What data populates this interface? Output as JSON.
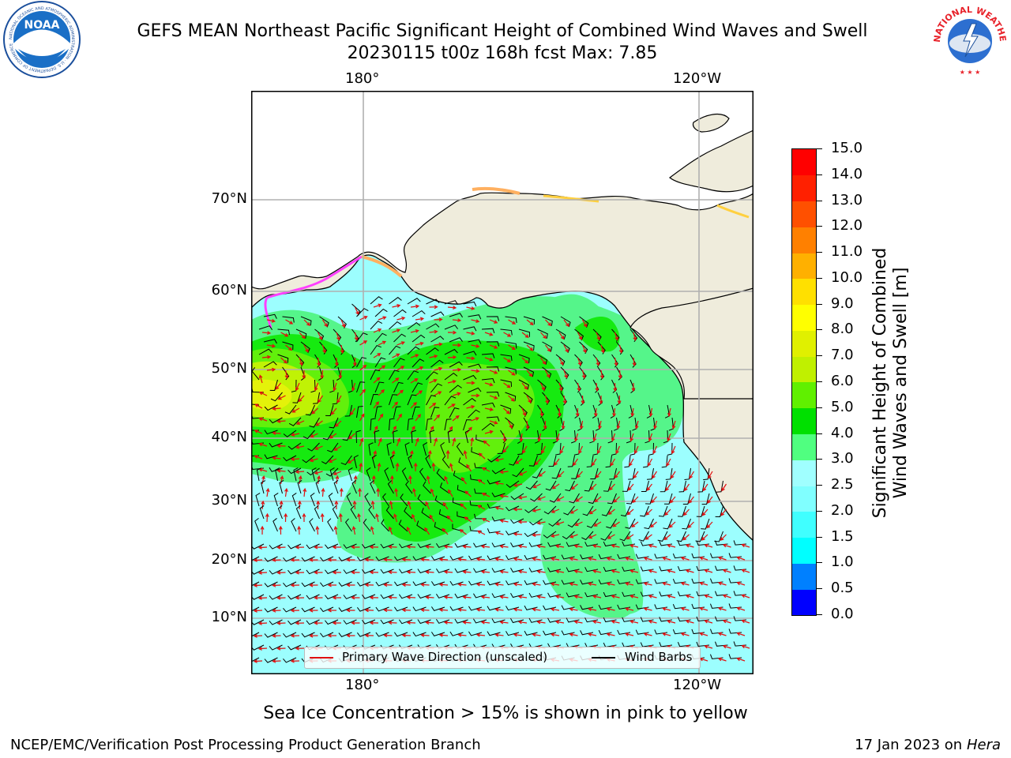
{
  "title_line1": "GEFS MEAN Northeast Pacific Significant Height of Combined Wind Waves and Swell",
  "title_line2": "20230115 t00z 168h fcst   Max: 7.85",
  "noaa_logo_text": "NOAA",
  "noaa_ring_text": "NATIONAL OCEANIC AND ATMOSPHERIC ADMINISTRATION · U.S. DEPARTMENT OF COMMERCE",
  "nws_ring_text": "NATIONAL WEATHER SERVICE",
  "axis": {
    "lon_top": [
      "180°",
      "120°W"
    ],
    "lon_bottom": [
      "180°",
      "120°W"
    ],
    "lat": [
      "70°N",
      "60°N",
      "50°N",
      "40°N",
      "30°N",
      "20°N",
      "10°N"
    ]
  },
  "legend": {
    "wave_dir": "Primary Wave Direction (unscaled)",
    "wind_barbs": "Wind Barbs"
  },
  "colorbar": {
    "label_line1": "Significant Height of Combined",
    "label_line2": "Wind Waves and Swell [m]",
    "ticks": [
      "0.0",
      "0.5",
      "1.0",
      "1.5",
      "2.0",
      "2.5",
      "3.0",
      "4.0",
      "5.0",
      "6.0",
      "7.0",
      "8.0",
      "9.0",
      "10.0",
      "11.0",
      "12.0",
      "13.0",
      "14.0",
      "15.0"
    ],
    "colors": [
      "#0000ff",
      "#0080ff",
      "#00ffff",
      "#40ffff",
      "#80ffff",
      "#a0ffff",
      "#50ff80",
      "#00e000",
      "#60f000",
      "#c0f000",
      "#e0f000",
      "#ffff00",
      "#ffe000",
      "#ffb000",
      "#ff8000",
      "#ff5000",
      "#ff2000",
      "#ff0000"
    ]
  },
  "land_color": "#efecdc",
  "sea_ice_note": "Sea Ice Concentration > 15% is shown in pink to yellow",
  "credit": "NCEP/EMC/Verification Post Processing Product Generation Branch",
  "date": "17 Jan 2023 on",
  "machine": "Hera"
}
